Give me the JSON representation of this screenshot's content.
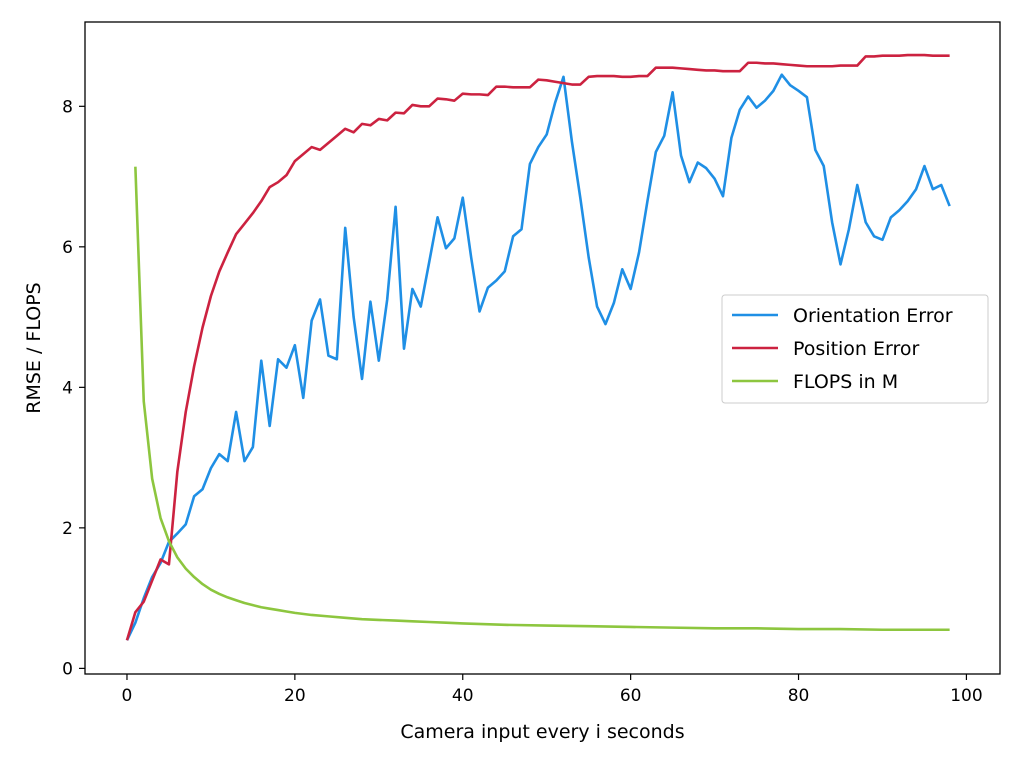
{
  "chart_data": {
    "type": "line",
    "title": "",
    "xlabel": "Camera input every i seconds",
    "ylabel": "RMSE / FLOPS",
    "xlim": [
      -5,
      104
    ],
    "ylim": [
      -0.08,
      9.2
    ],
    "xticks": [
      0,
      20,
      40,
      60,
      80,
      100
    ],
    "yticks": [
      0,
      2,
      4,
      6,
      8
    ],
    "grid": false,
    "legend_position": "center-right",
    "series": [
      {
        "name": "Orientation Error",
        "color": "#1f8fe5",
        "x": [
          0,
          1,
          2,
          3,
          4,
          5,
          6,
          7,
          8,
          9,
          10,
          11,
          12,
          13,
          14,
          15,
          16,
          17,
          18,
          19,
          20,
          21,
          22,
          23,
          24,
          25,
          26,
          27,
          28,
          29,
          30,
          31,
          32,
          33,
          34,
          35,
          36,
          37,
          38,
          39,
          40,
          41,
          42,
          43,
          44,
          45,
          46,
          47,
          48,
          49,
          50,
          51,
          52,
          53,
          54,
          55,
          56,
          57,
          58,
          59,
          60,
          61,
          62,
          63,
          64,
          65,
          66,
          67,
          68,
          69,
          70,
          71,
          72,
          73,
          74,
          75,
          76,
          77,
          78,
          79,
          80,
          81,
          82,
          83,
          84,
          85,
          86,
          87,
          88,
          89,
          90,
          91,
          92,
          93,
          94,
          95,
          96,
          97,
          98
        ],
        "y": [
          0.4,
          0.65,
          1.0,
          1.3,
          1.5,
          1.8,
          1.92,
          2.05,
          2.45,
          2.55,
          2.85,
          3.05,
          2.95,
          3.65,
          2.95,
          3.15,
          4.38,
          3.45,
          4.4,
          4.28,
          4.6,
          3.85,
          4.95,
          5.25,
          4.45,
          4.4,
          6.27,
          5.0,
          4.12,
          5.22,
          4.38,
          5.25,
          6.57,
          4.55,
          5.4,
          5.15,
          5.78,
          6.42,
          5.98,
          6.12,
          6.7,
          5.85,
          5.08,
          5.42,
          5.52,
          5.65,
          6.15,
          6.25,
          7.18,
          7.42,
          7.6,
          8.05,
          8.42,
          7.5,
          6.7,
          5.85,
          5.15,
          4.9,
          5.2,
          5.68,
          5.4,
          5.92,
          6.65,
          7.35,
          7.58,
          8.2,
          7.3,
          6.92,
          7.2,
          7.12,
          6.97,
          6.72,
          7.55,
          7.95,
          8.14,
          7.98,
          8.08,
          8.22,
          8.45,
          8.3,
          8.22,
          8.13,
          7.38,
          7.15,
          6.35,
          5.75,
          6.25,
          6.88,
          6.35,
          6.15,
          6.1,
          6.42,
          6.52,
          6.65,
          6.82,
          7.15,
          6.82,
          6.88,
          6.58
        ]
      },
      {
        "name": "Position Error",
        "color": "#cc2240",
        "x": [
          0,
          1,
          2,
          3,
          4,
          5,
          6,
          7,
          8,
          9,
          10,
          11,
          12,
          13,
          14,
          15,
          16,
          17,
          18,
          19,
          20,
          21,
          22,
          23,
          24,
          25,
          26,
          27,
          28,
          29,
          30,
          31,
          32,
          33,
          34,
          35,
          36,
          37,
          38,
          39,
          40,
          41,
          42,
          43,
          44,
          45,
          46,
          47,
          48,
          49,
          50,
          51,
          52,
          53,
          54,
          55,
          56,
          57,
          58,
          59,
          60,
          61,
          62,
          63,
          64,
          65,
          66,
          67,
          68,
          69,
          70,
          71,
          72,
          73,
          74,
          75,
          76,
          77,
          78,
          79,
          80,
          81,
          82,
          83,
          84,
          85,
          86,
          87,
          88,
          89,
          90,
          91,
          92,
          93,
          94,
          95,
          96,
          97,
          98
        ],
        "y": [
          0.4,
          0.8,
          0.95,
          1.25,
          1.55,
          1.48,
          2.8,
          3.65,
          4.3,
          4.85,
          5.3,
          5.65,
          5.92,
          6.18,
          6.33,
          6.48,
          6.65,
          6.85,
          6.92,
          7.02,
          7.22,
          7.32,
          7.42,
          7.38,
          7.48,
          7.58,
          7.68,
          7.63,
          7.75,
          7.73,
          7.82,
          7.8,
          7.91,
          7.9,
          8.02,
          8.0,
          8.0,
          8.11,
          8.1,
          8.08,
          8.18,
          8.17,
          8.17,
          8.16,
          8.28,
          8.28,
          8.27,
          8.27,
          8.27,
          8.38,
          8.37,
          8.35,
          8.33,
          8.31,
          8.31,
          8.42,
          8.43,
          8.43,
          8.43,
          8.42,
          8.42,
          8.43,
          8.43,
          8.55,
          8.55,
          8.55,
          8.54,
          8.53,
          8.52,
          8.51,
          8.51,
          8.5,
          8.5,
          8.5,
          8.62,
          8.62,
          8.61,
          8.61,
          8.6,
          8.59,
          8.58,
          8.57,
          8.57,
          8.57,
          8.57,
          8.58,
          8.58,
          8.58,
          8.71,
          8.71,
          8.72,
          8.72,
          8.72,
          8.73,
          8.73,
          8.73,
          8.72,
          8.72,
          8.72
        ]
      },
      {
        "name": "FLOPS in M",
        "color": "#8dc63f",
        "x": [
          1,
          2,
          3,
          4,
          5,
          6,
          7,
          8,
          9,
          10,
          11,
          12,
          13,
          14,
          15,
          16,
          17,
          18,
          19,
          20,
          22,
          24,
          26,
          28,
          30,
          32,
          34,
          36,
          38,
          40,
          45,
          50,
          55,
          60,
          65,
          70,
          75,
          80,
          85,
          90,
          95,
          98
        ],
        "y": [
          7.14,
          3.8,
          2.7,
          2.14,
          1.81,
          1.58,
          1.42,
          1.3,
          1.2,
          1.12,
          1.06,
          1.01,
          0.97,
          0.93,
          0.9,
          0.87,
          0.85,
          0.83,
          0.81,
          0.79,
          0.76,
          0.74,
          0.72,
          0.7,
          0.69,
          0.68,
          0.67,
          0.66,
          0.65,
          0.64,
          0.62,
          0.61,
          0.6,
          0.59,
          0.58,
          0.57,
          0.57,
          0.56,
          0.56,
          0.55,
          0.55,
          0.55
        ]
      }
    ]
  }
}
